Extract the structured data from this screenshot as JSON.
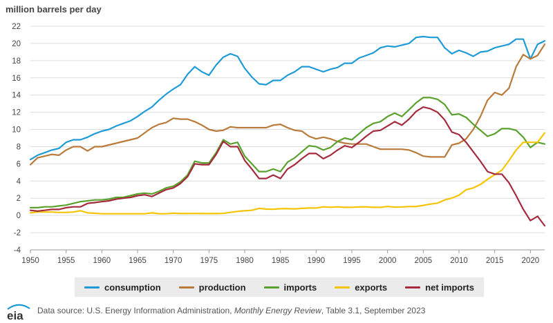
{
  "chart_data": {
    "type": "line",
    "ylabel": "million barrels per day",
    "ylim": [
      -4,
      22
    ],
    "yticks": [
      -4,
      -2,
      0,
      2,
      4,
      6,
      8,
      10,
      12,
      14,
      16,
      18,
      20,
      22
    ],
    "xlim": [
      1950,
      2022
    ],
    "xticks": [
      1950,
      1955,
      1960,
      1965,
      1970,
      1975,
      1980,
      1985,
      1990,
      1995,
      2000,
      2005,
      2010,
      2015,
      2020
    ],
    "grid": true,
    "legend_position": "bottom",
    "x": [
      1950,
      1951,
      1952,
      1953,
      1954,
      1955,
      1956,
      1957,
      1958,
      1959,
      1960,
      1961,
      1962,
      1963,
      1964,
      1965,
      1966,
      1967,
      1968,
      1969,
      1970,
      1971,
      1972,
      1973,
      1974,
      1975,
      1976,
      1977,
      1978,
      1979,
      1980,
      1981,
      1982,
      1983,
      1984,
      1985,
      1986,
      1987,
      1988,
      1989,
      1990,
      1991,
      1992,
      1993,
      1994,
      1995,
      1996,
      1997,
      1998,
      1999,
      2000,
      2001,
      2002,
      2003,
      2004,
      2005,
      2006,
      2007,
      2008,
      2009,
      2010,
      2011,
      2012,
      2013,
      2014,
      2015,
      2016,
      2017,
      2018,
      2019,
      2020,
      2021,
      2022
    ],
    "series": [
      {
        "name": "consumption",
        "color": "#1e9bd7",
        "values": [
          6.5,
          7.0,
          7.3,
          7.6,
          7.8,
          8.5,
          8.8,
          8.8,
          9.1,
          9.5,
          9.8,
          10.0,
          10.4,
          10.7,
          11.0,
          11.5,
          12.1,
          12.6,
          13.4,
          14.1,
          14.7,
          15.2,
          16.4,
          17.3,
          16.7,
          16.3,
          17.5,
          18.4,
          18.8,
          18.5,
          17.1,
          16.1,
          15.3,
          15.2,
          15.7,
          15.7,
          16.3,
          16.7,
          17.3,
          17.3,
          17.0,
          16.7,
          17.0,
          17.2,
          17.7,
          17.7,
          18.3,
          18.6,
          18.9,
          19.5,
          19.7,
          19.6,
          19.8,
          20.0,
          20.7,
          20.8,
          20.7,
          20.7,
          19.5,
          18.8,
          19.2,
          18.9,
          18.5,
          19.0,
          19.1,
          19.5,
          19.7,
          19.9,
          20.5,
          20.5,
          18.2,
          19.9,
          20.3
        ]
      },
      {
        "name": "production",
        "color": "#b97a3a",
        "values": [
          5.9,
          6.7,
          6.9,
          7.1,
          7.0,
          7.6,
          8.0,
          8.0,
          7.5,
          8.0,
          8.0,
          8.2,
          8.4,
          8.6,
          8.8,
          9.0,
          9.6,
          10.2,
          10.6,
          10.8,
          11.3,
          11.2,
          11.2,
          10.9,
          10.5,
          10.0,
          9.8,
          9.9,
          10.3,
          10.2,
          10.2,
          10.2,
          10.2,
          10.2,
          10.5,
          10.6,
          10.2,
          9.9,
          9.8,
          9.2,
          8.9,
          9.1,
          8.9,
          8.6,
          8.4,
          8.3,
          8.3,
          8.3,
          8.0,
          7.7,
          7.7,
          7.7,
          7.7,
          7.6,
          7.3,
          6.9,
          6.8,
          6.8,
          6.8,
          8.2,
          8.4,
          8.9,
          10.0,
          11.5,
          13.4,
          14.3,
          14.0,
          14.8,
          17.3,
          18.7,
          18.2,
          18.6,
          19.9
        ]
      },
      {
        "name": "imports",
        "color": "#5aa02c",
        "values": [
          0.9,
          0.9,
          1.0,
          1.0,
          1.1,
          1.2,
          1.4,
          1.6,
          1.7,
          1.8,
          1.8,
          1.9,
          2.1,
          2.1,
          2.3,
          2.5,
          2.6,
          2.5,
          2.8,
          3.2,
          3.4,
          3.9,
          4.7,
          6.3,
          6.1,
          6.1,
          7.3,
          8.8,
          8.3,
          8.5,
          6.9,
          6.0,
          5.1,
          5.1,
          5.4,
          5.1,
          6.2,
          6.7,
          7.4,
          8.1,
          8.0,
          7.6,
          7.9,
          8.6,
          9.0,
          8.8,
          9.5,
          10.2,
          10.7,
          10.9,
          11.5,
          11.9,
          11.5,
          12.3,
          13.1,
          13.7,
          13.7,
          13.5,
          12.9,
          11.7,
          11.8,
          11.4,
          10.6,
          9.9,
          9.2,
          9.5,
          10.1,
          10.1,
          9.9,
          9.1,
          7.9,
          8.5,
          8.3
        ]
      },
      {
        "name": "exports",
        "color": "#f5c400",
        "values": [
          0.3,
          0.4,
          0.4,
          0.4,
          0.35,
          0.35,
          0.4,
          0.55,
          0.3,
          0.25,
          0.2,
          0.2,
          0.2,
          0.2,
          0.2,
          0.2,
          0.2,
          0.3,
          0.2,
          0.2,
          0.26,
          0.22,
          0.22,
          0.23,
          0.22,
          0.21,
          0.22,
          0.24,
          0.36,
          0.47,
          0.54,
          0.6,
          0.82,
          0.74,
          0.72,
          0.78,
          0.78,
          0.76,
          0.82,
          0.86,
          0.86,
          1.0,
          0.95,
          1.0,
          0.94,
          0.95,
          0.98,
          1.0,
          0.94,
          0.94,
          1.04,
          0.97,
          0.98,
          1.03,
          1.05,
          1.17,
          1.32,
          1.43,
          1.8,
          2.02,
          2.35,
          2.99,
          3.2,
          3.6,
          4.2,
          4.74,
          5.26,
          6.38,
          7.6,
          8.5,
          8.5,
          8.5,
          9.6
        ]
      },
      {
        "name": "net imports",
        "color": "#a52a3c",
        "values": [
          0.6,
          0.5,
          0.6,
          0.7,
          0.7,
          0.9,
          1.0,
          1.0,
          1.4,
          1.5,
          1.6,
          1.7,
          1.9,
          2.0,
          2.1,
          2.3,
          2.4,
          2.2,
          2.6,
          3.0,
          3.2,
          3.7,
          4.5,
          6.0,
          5.9,
          5.9,
          7.1,
          8.6,
          8.0,
          8.0,
          6.4,
          5.4,
          4.3,
          4.3,
          4.7,
          4.3,
          5.4,
          5.9,
          6.6,
          7.2,
          7.2,
          6.6,
          7.0,
          7.6,
          8.1,
          7.9,
          8.5,
          9.2,
          9.8,
          9.9,
          10.4,
          10.9,
          10.5,
          11.2,
          12.1,
          12.6,
          12.4,
          12.0,
          11.1,
          9.7,
          9.4,
          8.5,
          7.4,
          6.3,
          5.1,
          4.8,
          4.8,
          3.8,
          2.3,
          0.7,
          -0.6,
          -0.1,
          -1.2
        ]
      }
    ]
  },
  "legend": [
    "consumption",
    "production",
    "imports",
    "exports",
    "net imports"
  ],
  "footer": {
    "logo_text": "eia",
    "source_prefix": "Data source: U.S. Energy Information Administration,",
    "source_title": "Monthly Energy Review",
    "source_suffix": ", Table 3.1, September 2023"
  }
}
